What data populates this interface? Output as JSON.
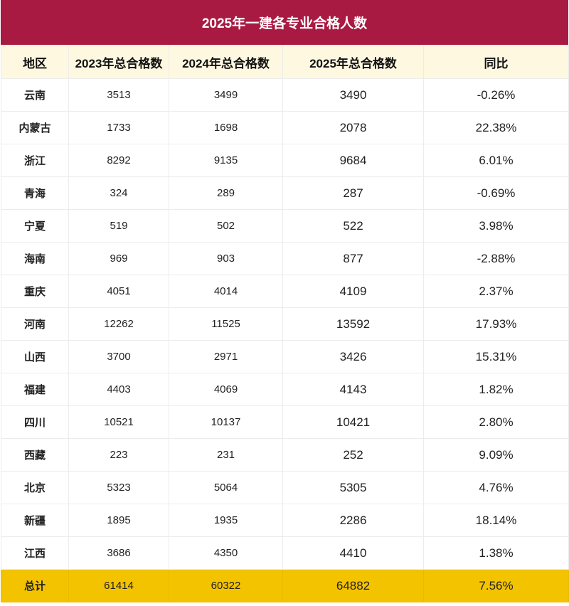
{
  "title": "2025年一建各专业合格人数",
  "colors": {
    "title_bg": "#a81a42",
    "header_bg": "#fff8e1",
    "total_bg": "#f4c300"
  },
  "headers": [
    "地区",
    "2023年总合格数",
    "2024年总合格数",
    "2025年总合格数",
    "同比"
  ],
  "rows": [
    [
      "云南",
      "3513",
      "3499",
      "3490",
      "-0.26%"
    ],
    [
      "内蒙古",
      "1733",
      "1698",
      "2078",
      "22.38%"
    ],
    [
      "浙江",
      "8292",
      "9135",
      "9684",
      "6.01%"
    ],
    [
      "青海",
      "324",
      "289",
      "287",
      "-0.69%"
    ],
    [
      "宁夏",
      "519",
      "502",
      "522",
      "3.98%"
    ],
    [
      "海南",
      "969",
      "903",
      "877",
      "-2.88%"
    ],
    [
      "重庆",
      "4051",
      "4014",
      "4109",
      "2.37%"
    ],
    [
      "河南",
      "12262",
      "11525",
      "13592",
      "17.93%"
    ],
    [
      "山西",
      "3700",
      "2971",
      "3426",
      "15.31%"
    ],
    [
      "福建",
      "4403",
      "4069",
      "4143",
      "1.82%"
    ],
    [
      "四川",
      "10521",
      "10137",
      "10421",
      "2.80%"
    ],
    [
      "西藏",
      "223",
      "231",
      "252",
      "9.09%"
    ],
    [
      "北京",
      "5323",
      "5064",
      "5305",
      "4.76%"
    ],
    [
      "新疆",
      "1895",
      "1935",
      "2286",
      "18.14%"
    ],
    [
      "江西",
      "3686",
      "4350",
      "4410",
      "1.38%"
    ]
  ],
  "total": [
    "总计",
    "61414",
    "60322",
    "64882",
    "7.56%"
  ]
}
